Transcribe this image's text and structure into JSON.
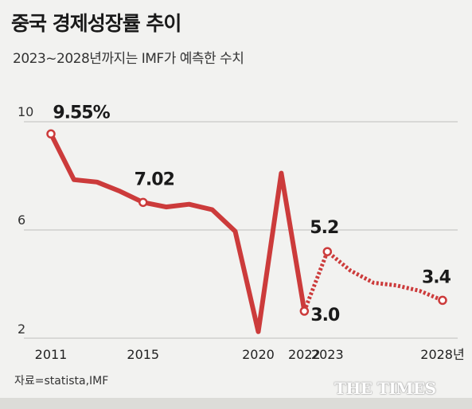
{
  "header": {
    "title": "중국 경제성장률 추이",
    "subtitle": "2023~2028년까지는 IMF가 예측한 수치"
  },
  "source": "자료=statista,IMF",
  "logo": "THE TIMES",
  "colors": {
    "line": "#cc3b3b",
    "grid": "#bdbdbd",
    "text": "#1a1a1a"
  },
  "chart_data": {
    "type": "line",
    "title": "중국 경제성장률 추이",
    "ylim": [
      2,
      10
    ],
    "y_ticks": [
      10,
      6,
      2
    ],
    "x_ticks": [
      "2011",
      "2015",
      "2020",
      "2022",
      "2023",
      "2028년"
    ],
    "grid": true,
    "series": [
      {
        "style": "solid",
        "x": [
          2011,
          2012,
          2013,
          2014,
          2015,
          2016,
          2017,
          2018,
          2019,
          2020,
          2021,
          2022
        ],
        "y": [
          9.55,
          7.86,
          7.77,
          7.43,
          7.02,
          6.85,
          6.95,
          6.75,
          5.95,
          2.24,
          8.1,
          3.0
        ]
      },
      {
        "style": "dotted",
        "x": [
          2022,
          2023,
          2024,
          2025,
          2026,
          2027,
          2028
        ],
        "y": [
          3.0,
          5.2,
          4.5,
          4.05,
          3.95,
          3.75,
          3.4
        ]
      }
    ],
    "data_labels": [
      {
        "x": 2011,
        "y": 9.55,
        "text": "9.55%"
      },
      {
        "x": 2015,
        "y": 7.02,
        "text": "7.02"
      },
      {
        "x": 2022,
        "y": 3.0,
        "text": "3.0"
      },
      {
        "x": 2023,
        "y": 5.2,
        "text": "5.2"
      },
      {
        "x": 2028,
        "y": 3.4,
        "text": "3.4"
      }
    ]
  }
}
